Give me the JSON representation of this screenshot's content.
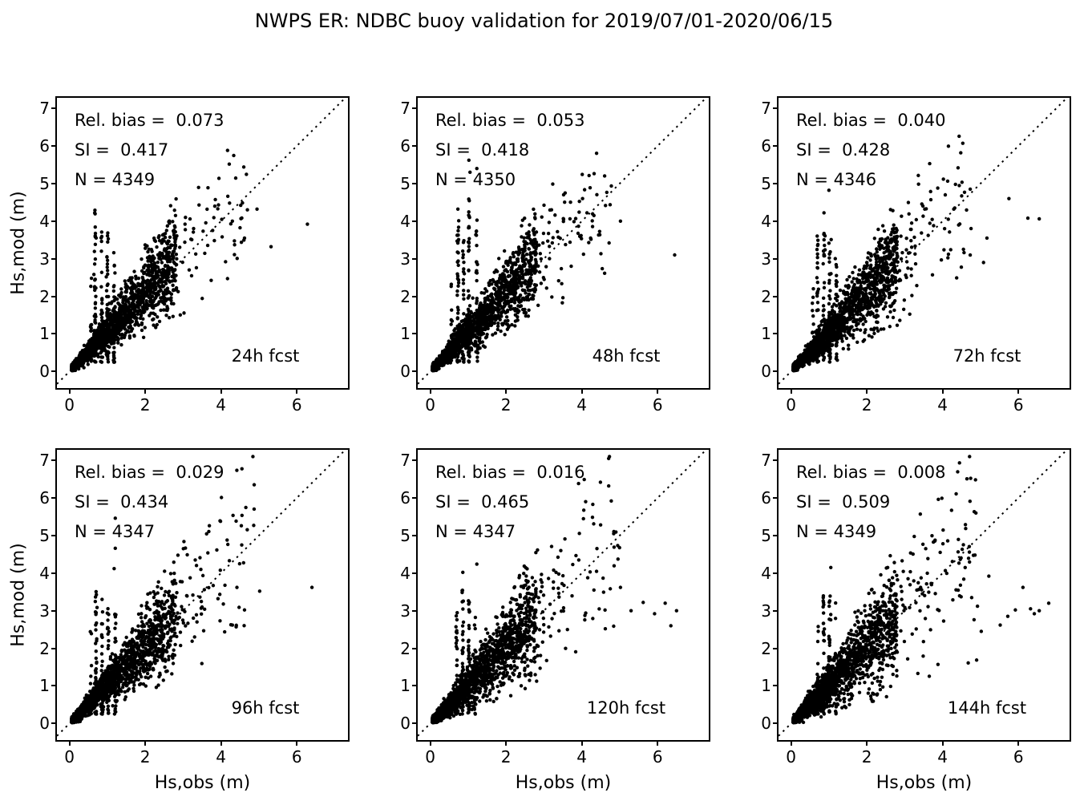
{
  "figure": {
    "background": "#ffffff",
    "text_color": "#000000"
  },
  "chart_data": {
    "type": "scatter",
    "title": "NWPS ER: NDBC buoy validation for 2019/07/01-2020/06/15",
    "xlabel": "Hs,obs (m)",
    "ylabel": "Hs,mod (m)",
    "xlim": [
      -0.33,
      7.35
    ],
    "ylim": [
      -0.44,
      7.28
    ],
    "x_tick_values": [
      0,
      2,
      4,
      6
    ],
    "x_tick_labels": [
      "0",
      "2",
      "4",
      "6"
    ],
    "y_tick_values": [
      0,
      1,
      2,
      3,
      4,
      5,
      6,
      7
    ],
    "y_tick_labels": [
      "0",
      "1",
      "2",
      "3",
      "4",
      "5",
      "6",
      "7"
    ],
    "grid": false,
    "marker_color": "#000000",
    "identity_line": {
      "style": "dotted",
      "equation": "y = x",
      "color": "#000000"
    },
    "panels": [
      {
        "label": "24h fcst",
        "stats_lines": [
          "Rel. bias =  0.073",
          "SI =  0.417",
          "N = 4349"
        ],
        "stats": {
          "rel_bias": 0.073,
          "si": 0.417,
          "n": 4349
        },
        "scatter_params": {
          "seed": 11,
          "n_core": 2100,
          "spread": 0.215,
          "bias": 0.073,
          "stripes": [
            [
              0.68,
              4.62,
              46
            ],
            [
              0.85,
              3.85,
              32
            ],
            [
              1.0,
              3.8,
              40
            ],
            [
              1.18,
              3.42,
              26
            ],
            [
              0.57,
              2.5,
              12
            ]
          ],
          "tail": {
            "n": 118,
            "min": 2.2,
            "max": 4.7
          },
          "outliers": [
            [
              4.52,
              4.42
            ],
            [
              4.95,
              4.32
            ],
            [
              6.28,
              3.92
            ],
            [
              4.62,
              3.55
            ],
            [
              5.32,
              3.32
            ],
            [
              4.3,
              4.0
            ],
            [
              3.42,
              4.43
            ],
            [
              2.58,
              3.42
            ],
            [
              4.12,
              2.92
            ],
            [
              3.05,
              3.92
            ]
          ]
        }
      },
      {
        "label": "48h fcst",
        "stats_lines": [
          "Rel. bias =  0.053",
          "SI =  0.418",
          "N = 4350"
        ],
        "stats": {
          "rel_bias": 0.053,
          "si": 0.418,
          "n": 4350
        },
        "scatter_params": {
          "seed": 22,
          "n_core": 2100,
          "spread": 0.218,
          "bias": 0.053,
          "stripes": [
            [
              0.73,
              4.05,
              40
            ],
            [
              0.88,
              3.5,
              26
            ],
            [
              1.02,
              4.62,
              44
            ],
            [
              1.23,
              4.32,
              28
            ],
            [
              0.57,
              2.6,
              12
            ]
          ],
          "tail": {
            "n": 125,
            "min": 2.2,
            "max": 4.8
          },
          "outliers": [
            [
              1.02,
              5.62
            ],
            [
              1.05,
              5.3
            ],
            [
              1.23,
              5.4
            ],
            [
              0.73,
              4.32
            ],
            [
              3.52,
              4.7
            ],
            [
              4.02,
              4.6
            ],
            [
              4.32,
              4.15
            ],
            [
              6.45,
              3.1
            ],
            [
              5.02,
              4.0
            ],
            [
              4.72,
              3.42
            ],
            [
              2.62,
              3.9
            ],
            [
              3.2,
              4.3
            ]
          ]
        }
      },
      {
        "label": "72h fcst",
        "stats_lines": [
          "Rel. bias =  0.040",
          "SI =  0.428",
          "N = 4346"
        ],
        "stats": {
          "rel_bias": 0.04,
          "si": 0.428,
          "n": 4346
        },
        "scatter_params": {
          "seed": 33,
          "n_core": 2100,
          "spread": 0.225,
          "bias": 0.04,
          "stripes": [
            [
              0.7,
              3.62,
              38
            ],
            [
              0.87,
              3.85,
              32
            ],
            [
              1.02,
              3.52,
              38
            ],
            [
              1.2,
              3.05,
              24
            ],
            [
              0.57,
              2.6,
              12
            ]
          ],
          "tail": {
            "n": 130,
            "min": 2.2,
            "max": 4.8
          },
          "outliers": [
            [
              1.0,
              4.82
            ],
            [
              0.87,
              4.22
            ],
            [
              6.25,
              4.08
            ],
            [
              6.55,
              4.06
            ],
            [
              4.55,
              3.25
            ],
            [
              5.08,
              2.9
            ],
            [
              4.32,
              4.35
            ],
            [
              5.17,
              3.55
            ],
            [
              4.15,
              4.05
            ],
            [
              3.62,
              3.62
            ],
            [
              2.9,
              3.6
            ],
            [
              5.75,
              4.6
            ]
          ]
        }
      },
      {
        "label": "96h fcst",
        "stats_lines": [
          "Rel. bias =  0.029",
          "SI =  0.434",
          "N = 4347"
        ],
        "stats": {
          "rel_bias": 0.029,
          "si": 0.434,
          "n": 4347
        },
        "scatter_params": {
          "seed": 44,
          "n_core": 2100,
          "spread": 0.23,
          "bias": 0.029,
          "stripes": [
            [
              0.7,
              3.55,
              36
            ],
            [
              0.86,
              3.32,
              28
            ],
            [
              1.02,
              3.12,
              32
            ],
            [
              1.21,
              3.45,
              28
            ],
            [
              0.57,
              2.5,
              12
            ]
          ],
          "tail": {
            "n": 125,
            "min": 2.2,
            "max": 4.9
          },
          "outliers": [
            [
              1.21,
              5.46
            ],
            [
              1.21,
              4.66
            ],
            [
              1.18,
              4.12
            ],
            [
              3.32,
              4.35
            ],
            [
              4.42,
              3.62
            ],
            [
              5.02,
              3.52
            ],
            [
              6.4,
              3.62
            ],
            [
              4.62,
              3.02
            ],
            [
              3.92,
              3.32
            ],
            [
              3.56,
              3.56
            ],
            [
              4.3,
              2.62
            ],
            [
              2.72,
              3.3
            ]
          ]
        }
      },
      {
        "label": "120h fcst",
        "stats_lines": [
          "Rel. bias =  0.016",
          "SI =  0.465",
          "N = 4347"
        ],
        "stats": {
          "rel_bias": 0.016,
          "si": 0.465,
          "n": 4347
        },
        "scatter_params": {
          "seed": 55,
          "n_core": 2100,
          "spread": 0.25,
          "bias": 0.016,
          "stripes": [
            [
              0.7,
              3.02,
              28
            ],
            [
              0.86,
              3.62,
              32
            ],
            [
              1.02,
              3.32,
              28
            ],
            [
              1.18,
              2.92,
              20
            ]
          ],
          "tail": {
            "n": 150,
            "min": 2.1,
            "max": 5.0
          },
          "outliers": [
            [
              1.23,
              4.24
            ],
            [
              0.86,
              4.02
            ],
            [
              3.92,
              4.35
            ],
            [
              4.32,
              3.55
            ],
            [
              5.02,
              3.62
            ],
            [
              5.62,
              3.22
            ],
            [
              6.2,
              3.2
            ],
            [
              5.92,
              2.92
            ],
            [
              4.62,
              2.52
            ],
            [
              3.32,
              4.02
            ],
            [
              2.92,
              3.82
            ],
            [
              6.5,
              3.0
            ],
            [
              5.3,
              3.0
            ],
            [
              6.35,
              2.6
            ]
          ]
        }
      },
      {
        "label": "144h fcst",
        "stats_lines": [
          "Rel. bias =  0.008",
          "SI =  0.509",
          "N = 4349"
        ],
        "stats": {
          "rel_bias": 0.008,
          "si": 0.509,
          "n": 4349
        },
        "scatter_params": {
          "seed": 66,
          "n_core": 2100,
          "spread": 0.272,
          "bias": 0.008,
          "stripes": [
            [
              0.86,
              3.62,
              34
            ],
            [
              1.02,
              3.55,
              32
            ],
            [
              0.7,
              2.82,
              22
            ],
            [
              1.18,
              3.32,
              20
            ]
          ],
          "tail": {
            "n": 160,
            "min": 2.1,
            "max": 4.9
          },
          "outliers": [
            [
              1.05,
              4.15
            ],
            [
              2.55,
              4.15
            ],
            [
              3.42,
              3.62
            ],
            [
              5.22,
              3.92
            ],
            [
              6.8,
              3.2
            ],
            [
              6.42,
              2.92
            ],
            [
              5.92,
              3.02
            ],
            [
              6.12,
              3.62
            ],
            [
              5.52,
              2.62
            ],
            [
              6.32,
              3.05
            ],
            [
              4.92,
              3.12
            ],
            [
              5.02,
              2.45
            ],
            [
              3.32,
              3.55
            ],
            [
              2.92,
              3.3
            ],
            [
              5.72,
              2.85
            ],
            [
              6.55,
              3.0
            ]
          ]
        }
      }
    ]
  }
}
